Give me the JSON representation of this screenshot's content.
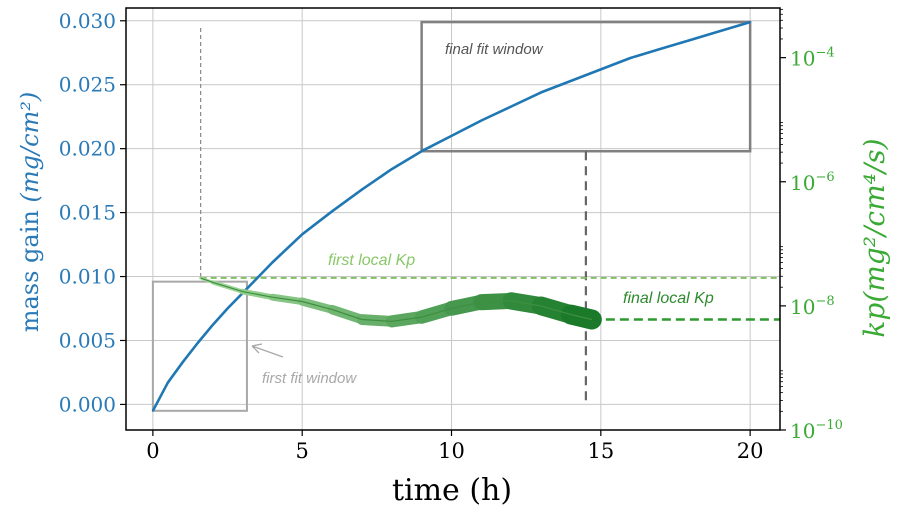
{
  "chart_data": {
    "type": "line",
    "xlabel": "time (h)",
    "ylabel_left_text": "mass gain ",
    "ylabel_left_math": "(mg/cm²)",
    "ylabel_right_math": "kp(mg²/cm⁴/s)",
    "xlim": [
      -0.9,
      21.0
    ],
    "ylim_left": [
      -0.002,
      0.031
    ],
    "ylim_right_log10": [
      -10,
      -3.2
    ],
    "x_ticks": [
      0,
      5,
      10,
      15,
      20
    ],
    "x_tick_labels": [
      "0",
      "5",
      "10",
      "15",
      "20"
    ],
    "y_left_ticks": [
      0.0,
      0.005,
      0.01,
      0.015,
      0.02,
      0.025,
      0.03
    ],
    "y_left_tick_labels": [
      "0.000",
      "0.005",
      "0.010",
      "0.015",
      "0.020",
      "0.025",
      "0.030"
    ],
    "y_right_ticks_exp": [
      -10,
      -8,
      -6,
      -4
    ],
    "y_right_tick_labels": [
      {
        "base": "10",
        "exp": "−10"
      },
      {
        "base": "10",
        "exp": "−8"
      },
      {
        "base": "10",
        "exp": "−6"
      },
      {
        "base": "10",
        "exp": "−4"
      }
    ],
    "grid": true,
    "colors": {
      "mass_gain": "#1f77b4",
      "kp_light": "#a8dca0",
      "kp_dark": "#1b7a2a",
      "fit_window_first": "#a8a8a8",
      "fit_window_final": "#808080",
      "left_axis": "#2a7ab8",
      "right_axis": "#3aaa35",
      "first_kp_line": "#80c060",
      "final_kp_line": "#2d9a2d"
    },
    "series": [
      {
        "axis": "left",
        "x": [
          0,
          0.5,
          1,
          1.5,
          2,
          2.5,
          3,
          4,
          5,
          6,
          7,
          8,
          9,
          10,
          11,
          12,
          13,
          14,
          15,
          16,
          17,
          18,
          19,
          20
        ],
        "values": [
          -0.0005,
          0.0017,
          0.0033,
          0.0048,
          0.0062,
          0.0075,
          0.0087,
          0.0111,
          0.0133,
          0.0151,
          0.0168,
          0.0184,
          0.0198,
          0.021,
          0.0222,
          0.0233,
          0.0244,
          0.0253,
          0.0262,
          0.0271,
          0.0278,
          0.0285,
          0.0292,
          0.0299
        ]
      },
      {
        "axis": "right",
        "x": [
          1.6,
          2,
          3,
          4,
          5,
          6,
          7,
          8,
          9,
          10,
          11,
          12,
          13,
          14,
          14.7
        ],
        "values_log10": [
          -7.55,
          -7.62,
          -7.77,
          -7.86,
          -7.93,
          -8.06,
          -8.22,
          -8.25,
          -8.18,
          -8.04,
          -7.94,
          -7.92,
          -8.0,
          -8.14,
          -8.22
        ]
      }
    ],
    "annotations": {
      "first_fit_window": {
        "label": "first fit window",
        "x": [
          0,
          3.15
        ],
        "y": [
          -0.0005,
          0.0096
        ]
      },
      "final_fit_window": {
        "label": "final fit window",
        "x": [
          9.0,
          20.0
        ],
        "y": [
          0.0198,
          0.0299
        ]
      },
      "first_local_kp": {
        "label": "first local Kp",
        "log10": -7.55,
        "x_start": 1.6
      },
      "final_local_kp": {
        "label": "final local Kp",
        "log10": -8.22,
        "x_start": 14.7
      },
      "first_vline_x": 1.6,
      "final_vline_x": 14.5
    }
  }
}
